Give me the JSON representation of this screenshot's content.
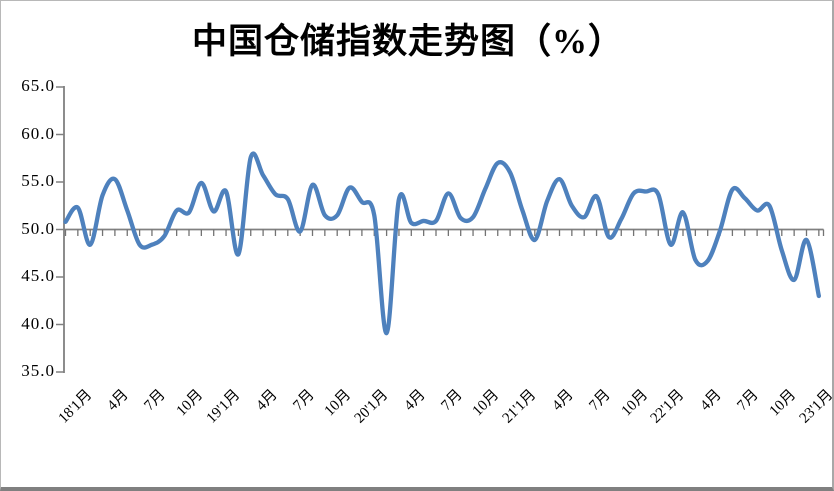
{
  "title": "中国仓储指数走势图（%）",
  "chart_data": {
    "type": "line",
    "title": "中国仓储指数走势图（%）",
    "series_name": "中国仓储指数",
    "unit": "%",
    "frequency": "monthly",
    "start_month": "2017-12",
    "end_month": "2023-01",
    "values": [
      50.8,
      52.3,
      48.4,
      53.6,
      55.3,
      52.0,
      48.4,
      48.4,
      49.3,
      52.0,
      51.8,
      54.9,
      51.9,
      54.0,
      47.4,
      57.6,
      55.7,
      53.7,
      53.2,
      49.8,
      54.7,
      51.5,
      51.5,
      54.4,
      52.9,
      51.5,
      39.1,
      53.2,
      50.7,
      50.9,
      50.9,
      53.8,
      51.2,
      51.3,
      54.3,
      57.0,
      56.0,
      52.0,
      48.9,
      53.0,
      55.3,
      52.5,
      51.3,
      53.5,
      49.2,
      51.1,
      53.8,
      54.0,
      53.7,
      48.4,
      51.8,
      46.8,
      46.7,
      49.9,
      54.2,
      53.3,
      52.0,
      52.5,
      47.8,
      44.7,
      48.9,
      43.0
    ],
    "x_tick_labels": [
      "18'1月",
      "4月",
      "7月",
      "10月",
      "19'1月",
      "4月",
      "7月",
      "10月",
      "20'1月",
      "4月",
      "7月",
      "10月",
      "21'1月",
      "4月",
      "7月",
      "10月",
      "22'1月",
      "4月",
      "7月",
      "10月",
      "23'1月"
    ],
    "x_label_start_index": 1,
    "x_label_interval": 3,
    "y_tick_labels": [
      "65.0",
      "60.0",
      "55.0",
      "50.0",
      "45.0",
      "40.0",
      "35.0"
    ],
    "y_ticks": [
      65.0,
      60.0,
      55.0,
      50.0,
      45.0,
      40.0,
      35.0
    ],
    "ylim": [
      35.0,
      65.0
    ],
    "x_axis_cross_value": 50.0,
    "grid": false,
    "legend": "none",
    "smoothed_line": true,
    "line_color": "#4E81BD",
    "axis_color": "#808080",
    "tick_color": "#737373",
    "text_color": "#000000"
  }
}
